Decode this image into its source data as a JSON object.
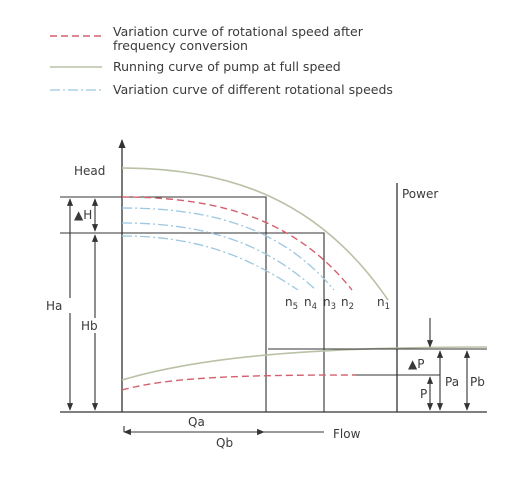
{
  "legend": {
    "items": [
      {
        "style": "dashed",
        "color": "#d4606e",
        "line1": "Variation curve of rotational speed after",
        "line2": "frequency conversion"
      },
      {
        "style": "solid",
        "color": "#b9c2a6",
        "line1": "Running curve of pump at full speed"
      },
      {
        "style": "dashdot",
        "color": "#9cc8e0",
        "line1": "Variation curve of different rotational speeds"
      }
    ]
  },
  "diagram": {
    "head_label": "Head",
    "flow_label": "Flow",
    "power_label": "Power",
    "delta_h": "▲H",
    "ha": "Ha",
    "hb": "Hb",
    "qa": "Qa",
    "qb": "Qb",
    "delta_p": "▲P",
    "p": "P",
    "pa": "Pa",
    "pb": "Pb",
    "speeds": {
      "n5": {
        "base": "n",
        "sub": "5"
      },
      "n4": {
        "base": "n",
        "sub": "4"
      },
      "n3": {
        "base": "n",
        "sub": "3"
      },
      "n2": {
        "base": "n",
        "sub": "2"
      },
      "n1": {
        "base": "n",
        "sub": "1"
      }
    }
  }
}
